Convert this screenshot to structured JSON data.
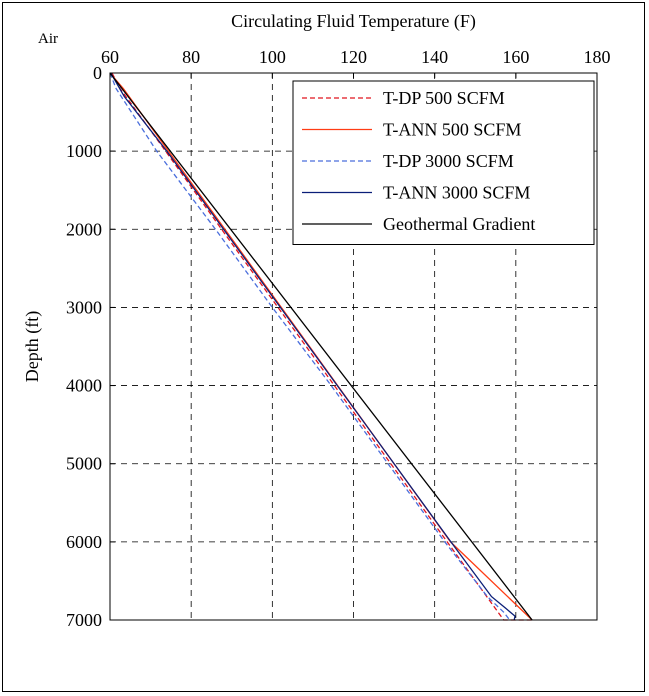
{
  "corner_label": "Air",
  "chart_data": {
    "type": "line",
    "title": "",
    "xlabel": "Circulating Fluid Temperature (F)",
    "ylabel": "Depth (ft)",
    "xlim": [
      60,
      180
    ],
    "ylim": [
      0,
      7000
    ],
    "y_inverted": true,
    "x_axis_position": "top",
    "xticks": [
      60,
      80,
      100,
      120,
      140,
      160,
      180
    ],
    "yticks": [
      0,
      1000,
      2000,
      3000,
      4000,
      5000,
      6000,
      7000
    ],
    "grid": true,
    "legend_position": "top-right",
    "series": [
      {
        "name": "T-DP 500 SCFM",
        "color": "#e0141e",
        "dash": "dashed",
        "points": [
          [
            60.5,
            0
          ],
          [
            62.5,
            200
          ],
          [
            73.7,
            1000
          ],
          [
            87.5,
            2000
          ],
          [
            101.4,
            3000
          ],
          [
            115.3,
            4000
          ],
          [
            129.2,
            5000
          ],
          [
            143.1,
            6000
          ],
          [
            157,
            7000
          ],
          [
            164.5,
            7000
          ]
        ]
      },
      {
        "name": "T-ANN 500 SCFM",
        "color": "#ff3c14",
        "dash": "solid",
        "points": [
          [
            60,
            0
          ],
          [
            63.3,
            200
          ],
          [
            74.4,
            1000
          ],
          [
            88.3,
            2000
          ],
          [
            102.2,
            3000
          ],
          [
            116.1,
            4000
          ],
          [
            130,
            5000
          ],
          [
            143.9,
            6000
          ],
          [
            164,
            7000
          ]
        ]
      },
      {
        "name": "T-DP 3000 SCFM",
        "color": "#4a6edc",
        "dash": "dashed",
        "points": [
          [
            60,
            0
          ],
          [
            61.5,
            200
          ],
          [
            71.5,
            1000
          ],
          [
            86,
            2000
          ],
          [
            100,
            3000
          ],
          [
            114.5,
            4000
          ],
          [
            128.5,
            5000
          ],
          [
            142.5,
            6000
          ],
          [
            153,
            6700
          ],
          [
            157,
            6900
          ],
          [
            158.5,
            7000
          ]
        ]
      },
      {
        "name": "T-ANN 3000 SCFM",
        "color": "#0a1e78",
        "dash": "solid",
        "points": [
          [
            60.2,
            0
          ],
          [
            63.5,
            300
          ],
          [
            74,
            1000
          ],
          [
            88,
            2000
          ],
          [
            102,
            3000
          ],
          [
            116,
            4000
          ],
          [
            130,
            5000
          ],
          [
            144,
            6000
          ],
          [
            154,
            6700
          ],
          [
            157.5,
            6850
          ],
          [
            159.8,
            6950
          ],
          [
            159.6,
            7000
          ]
        ]
      },
      {
        "name": "Geothermal Gradient",
        "color": "#000000",
        "dash": "solid",
        "points": [
          [
            60,
            0
          ],
          [
            164,
            7000
          ]
        ]
      }
    ]
  }
}
